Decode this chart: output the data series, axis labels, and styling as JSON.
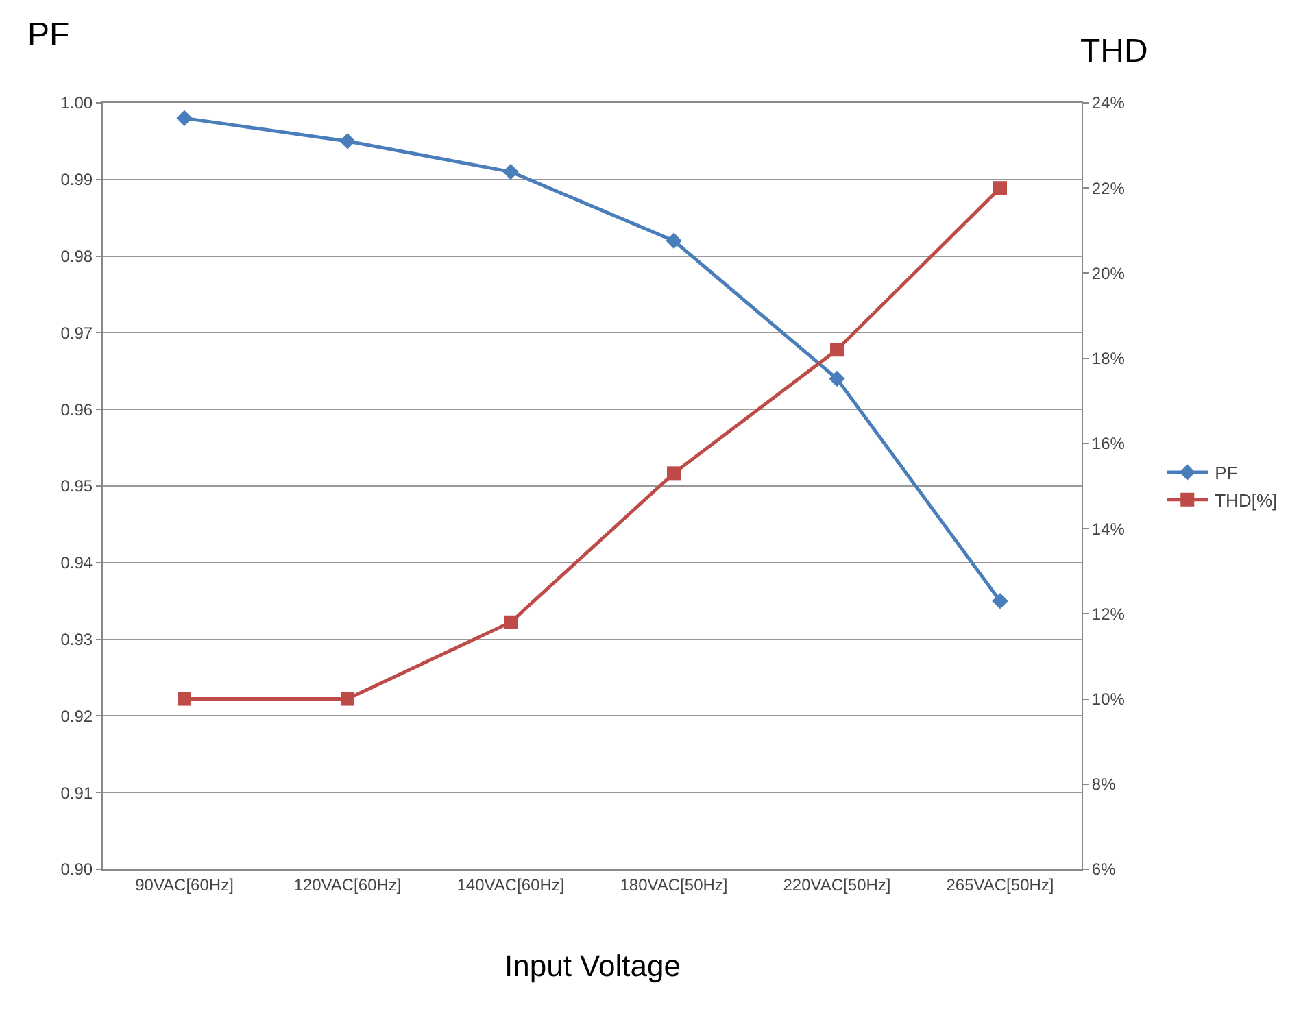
{
  "chart_data": {
    "type": "line",
    "ylabel": "PF",
    "y2label": "THD",
    "xlabel": "Input Voltage",
    "categories": [
      "90VAC[60Hz]",
      "120VAC[60Hz]",
      "140VAC[60Hz]",
      "180VAC[50Hz]",
      "220VAC[50Hz]",
      "265VAC[50Hz]"
    ],
    "series": [
      {
        "name": "PF",
        "color": "#4a7ebb",
        "marker": "diamond",
        "values": [
          0.998,
          0.995,
          0.991,
          0.982,
          0.964,
          0.935
        ]
      },
      {
        "name": "THD[%]",
        "color": "#be4b48",
        "marker": "square",
        "axis": "y2",
        "values": [
          10.0,
          10.0,
          11.8,
          15.3,
          18.2,
          22.0
        ]
      }
    ],
    "ylim": [
      0.9,
      1.0
    ],
    "yticks": [
      {
        "value": 0.9,
        "label": "0.90"
      },
      0.91,
      0.92,
      0.93,
      0.94,
      0.95,
      0.96,
      0.97,
      0.98,
      0.99,
      {
        "value": 1.0,
        "label": "1.00"
      }
    ],
    "y2lim": [
      6,
      24
    ],
    "y2ticks": [
      {
        "value": 6,
        "label": "6%"
      },
      {
        "value": 8,
        "label": "8%"
      },
      {
        "value": 10,
        "label": "10%"
      },
      {
        "value": 12,
        "label": "12%"
      },
      {
        "value": 14,
        "label": "14%"
      },
      {
        "value": 16,
        "label": "16%"
      },
      {
        "value": 18,
        "label": "18%"
      },
      {
        "value": 20,
        "label": "20%"
      },
      {
        "value": 22,
        "label": "22%"
      },
      {
        "value": 24,
        "label": "24%"
      }
    ],
    "grid": "y",
    "legend": "right",
    "line_style": "solid"
  }
}
